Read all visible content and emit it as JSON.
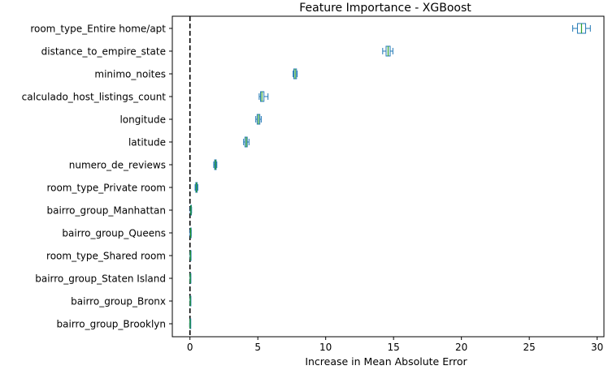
{
  "chart_data": {
    "type": "box",
    "orientation": "horizontal",
    "title": "Feature Importance - XGBoost",
    "xlabel": "Increase in Mean Absolute Error",
    "ylabel": "",
    "xlim": [
      -1.3,
      30.5
    ],
    "xticks": [
      0,
      5,
      10,
      15,
      20,
      25,
      30
    ],
    "reference_line": {
      "x": 0,
      "style": "dashed",
      "color": "#000000"
    },
    "box_color": "#1f77b4",
    "median_color": "#2ca02c",
    "features": [
      {
        "name": "room_type_Entire home/apt",
        "whislo": 28.2,
        "q1": 28.55,
        "med": 28.85,
        "q3": 29.15,
        "whishi": 29.5
      },
      {
        "name": "distance_to_empire_state",
        "whislo": 14.2,
        "q1": 14.45,
        "med": 14.6,
        "q3": 14.75,
        "whishi": 14.95
      },
      {
        "name": "minimo_noites",
        "whislo": 7.6,
        "q1": 7.65,
        "med": 7.75,
        "q3": 7.85,
        "whishi": 7.9
      },
      {
        "name": "calculado_host_listings_count",
        "whislo": 5.1,
        "q1": 5.2,
        "med": 5.3,
        "q3": 5.45,
        "whishi": 5.75
      },
      {
        "name": "longitude",
        "whislo": 4.85,
        "q1": 4.95,
        "med": 5.05,
        "q3": 5.15,
        "whishi": 5.25
      },
      {
        "name": "latitude",
        "whislo": 3.95,
        "q1": 4.05,
        "med": 4.15,
        "q3": 4.22,
        "whishi": 4.35
      },
      {
        "name": "numero_de_reviews",
        "whislo": 1.75,
        "q1": 1.82,
        "med": 1.88,
        "q3": 1.93,
        "whishi": 1.98
      },
      {
        "name": "room_type_Private room",
        "whislo": 0.38,
        "q1": 0.43,
        "med": 0.48,
        "q3": 0.53,
        "whishi": 0.58
      },
      {
        "name": "bairro_group_Manhattan",
        "whislo": 0.02,
        "q1": 0.05,
        "med": 0.07,
        "q3": 0.1,
        "whishi": 0.12
      },
      {
        "name": "bairro_group_Queens",
        "whislo": 0.0,
        "q1": 0.03,
        "med": 0.05,
        "q3": 0.07,
        "whishi": 0.09
      },
      {
        "name": "room_type_Shared room",
        "whislo": 0.0,
        "q1": 0.02,
        "med": 0.03,
        "q3": 0.04,
        "whishi": 0.05
      },
      {
        "name": "bairro_group_Staten Island",
        "whislo": 0.0,
        "q1": 0.01,
        "med": 0.02,
        "q3": 0.03,
        "whishi": 0.04
      },
      {
        "name": "bairro_group_Bronx",
        "whislo": 0.0,
        "q1": 0.01,
        "med": 0.02,
        "q3": 0.03,
        "whishi": 0.04
      },
      {
        "name": "bairro_group_Brooklyn",
        "whislo": -0.02,
        "q1": 0.0,
        "med": 0.01,
        "q3": 0.02,
        "whishi": 0.03
      }
    ]
  }
}
